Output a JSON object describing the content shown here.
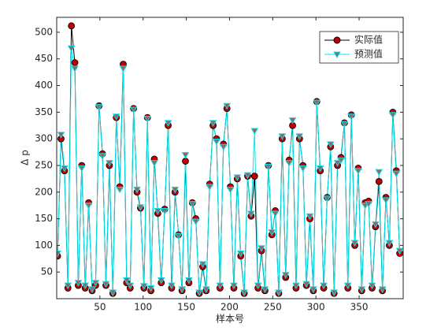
{
  "chart_data": {
    "type": "line",
    "x_label": "样本号",
    "y_label": "Δ p",
    "x": [
      1,
      5,
      9,
      13,
      17,
      21,
      25,
      29,
      33,
      37,
      41,
      45,
      49,
      53,
      57,
      61,
      65,
      69,
      73,
      77,
      81,
      85,
      89,
      93,
      97,
      101,
      105,
      109,
      113,
      117,
      121,
      125,
      129,
      133,
      137,
      141,
      145,
      149,
      153,
      157,
      161,
      165,
      169,
      173,
      177,
      181,
      185,
      189,
      193,
      197,
      201,
      205,
      209,
      213,
      217,
      221,
      225,
      229,
      233,
      237,
      241,
      245,
      249,
      253,
      257,
      261,
      265,
      269,
      273,
      277,
      281,
      285,
      289,
      293,
      297,
      301,
      305,
      309,
      313,
      317,
      321,
      325,
      329,
      333,
      337,
      341,
      345,
      349,
      353,
      357,
      361,
      365,
      369,
      373,
      377,
      381,
      385,
      389,
      393,
      397
    ],
    "series": [
      {
        "name": "实际值",
        "color": "#000000",
        "marker": "circle",
        "marker_color": "#c00000",
        "values": [
          80,
          300,
          240,
          20,
          512,
          443,
          25,
          250,
          20,
          180,
          15,
          25,
          362,
          272,
          25,
          250,
          10,
          340,
          210,
          440,
          30,
          20,
          357,
          200,
          170,
          20,
          340,
          15,
          262,
          160,
          30,
          168,
          325,
          20,
          200,
          120,
          15,
          258,
          30,
          180,
          150,
          10,
          60,
          15,
          215,
          325,
          300,
          20,
          290,
          357,
          210,
          20,
          225,
          80,
          10,
          230,
          155,
          230,
          20,
          90,
          15,
          250,
          120,
          165,
          10,
          300,
          40,
          260,
          325,
          20,
          300,
          250,
          25,
          150,
          15,
          370,
          240,
          20,
          190,
          285,
          10,
          250,
          265,
          330,
          20,
          345,
          100,
          245,
          15,
          180,
          183,
          20,
          135,
          220,
          15,
          190,
          100,
          350,
          240,
          85
        ]
      },
      {
        "name": "预测值",
        "color": "#00e5ee",
        "marker": "triangle-down",
        "marker_color": "#8a6a6a",
        "values": [
          85,
          308,
          245,
          25,
          470,
          432,
          30,
          245,
          25,
          175,
          18,
          30,
          360,
          268,
          28,
          255,
          12,
          342,
          205,
          432,
          35,
          25,
          355,
          205,
          172,
          24,
          338,
          20,
          255,
          165,
          35,
          165,
          330,
          25,
          205,
          118,
          18,
          270,
          35,
          178,
          145,
          12,
          65,
          18,
          210,
          330,
          295,
          25,
          285,
          362,
          205,
          25,
          228,
          85,
          12,
          232,
          160,
          315,
          25,
          95,
          18,
          248,
          125,
          160,
          12,
          305,
          45,
          255,
          335,
          25,
          305,
          245,
          28,
          155,
          18,
          368,
          245,
          25,
          188,
          290,
          12,
          255,
          260,
          328,
          25,
          342,
          105,
          240,
          18,
          175,
          178,
          25,
          140,
          238,
          18,
          185,
          105,
          345,
          235,
          90
        ]
      }
    ],
    "xlim": [
      0,
      401
    ],
    "ylim": [
      0,
      528
    ],
    "xticks": [
      50,
      100,
      150,
      200,
      250,
      300,
      350
    ],
    "yticks": [
      50,
      100,
      150,
      200,
      250,
      300,
      350,
      400,
      450,
      500
    ],
    "legend": "upper right"
  }
}
